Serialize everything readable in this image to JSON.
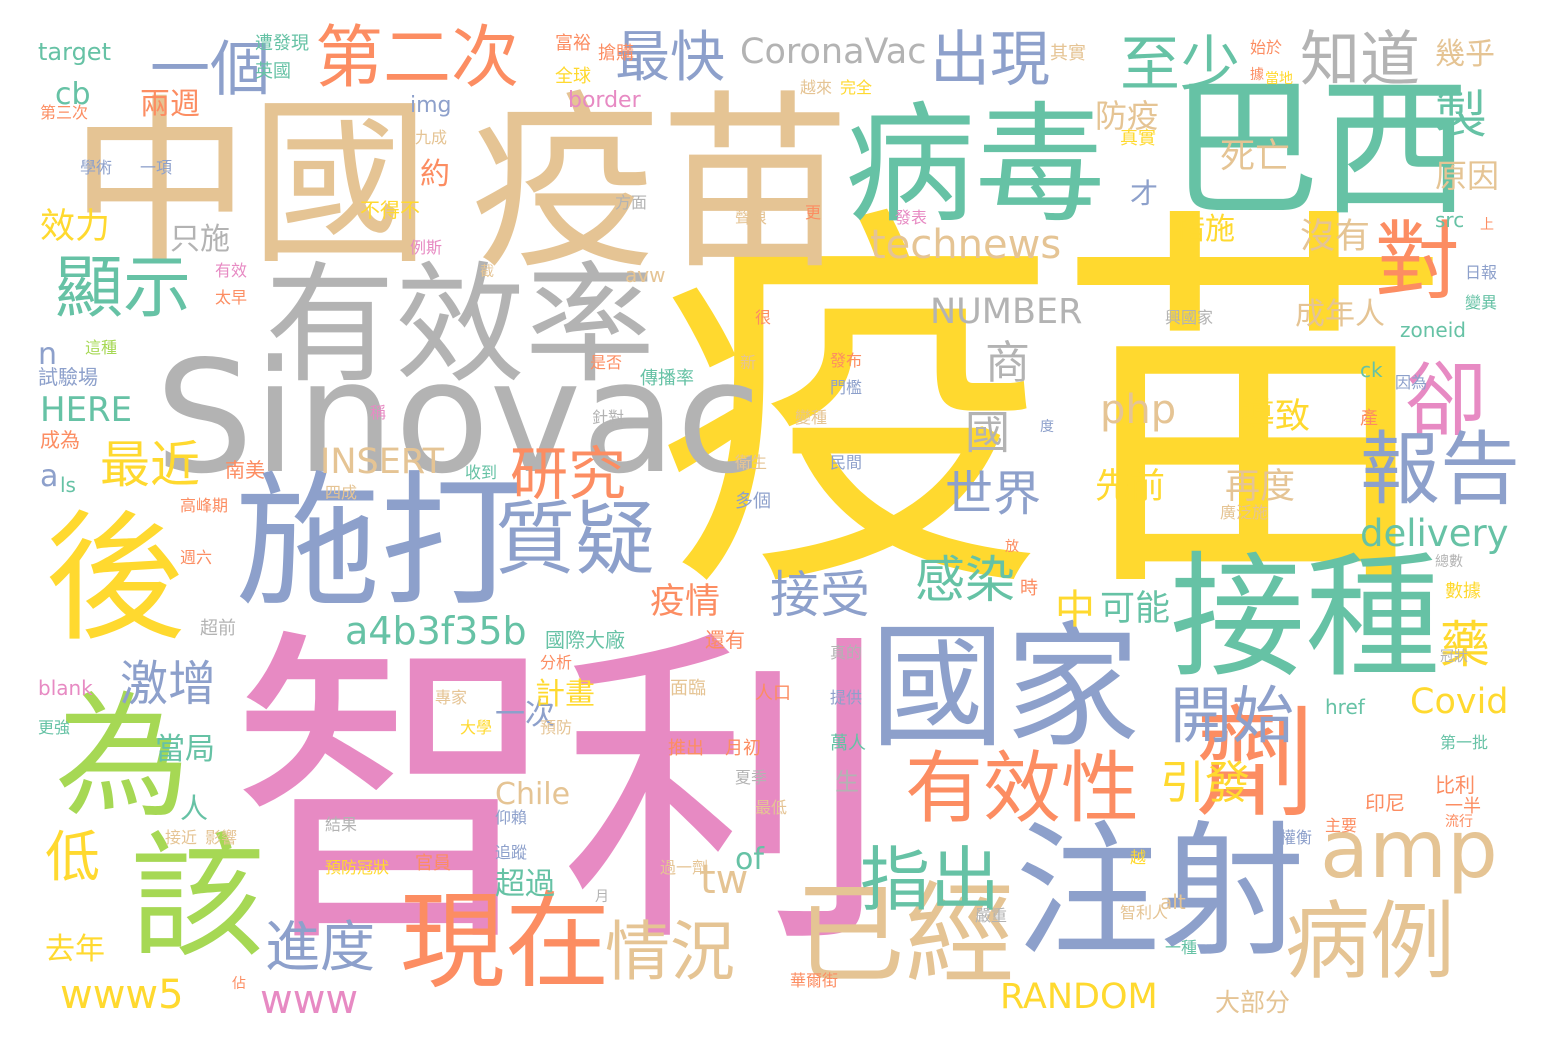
{
  "palette": {
    "pink": "#E78AC3",
    "yellow": "#FFD92F",
    "tan": "#E5C494",
    "teal": "#66C2A5",
    "blue": "#8DA0CB",
    "orange": "#FC8D62",
    "green": "#A6D854",
    "gray": "#B3B3B3"
  },
  "words": [
    {
      "text": "疫苗",
      "color": "yellow"
    },
    {
      "text": "智利",
      "color": "pink"
    },
    {
      "text": "疫苗",
      "color": "tan"
    },
    {
      "text": "中國",
      "color": "tan"
    },
    {
      "text": "病毒",
      "color": "teal"
    },
    {
      "text": "巴西",
      "color": "teal"
    },
    {
      "text": "Sinovac",
      "color": "gray"
    },
    {
      "text": "有效率",
      "color": "gray"
    },
    {
      "text": "施打",
      "color": "blue"
    },
    {
      "text": "國家",
      "color": "blue"
    },
    {
      "text": "接種",
      "color": "teal"
    },
    {
      "text": "注射",
      "color": "blue"
    },
    {
      "text": "後",
      "color": "yellow"
    },
    {
      "text": "為",
      "color": "green"
    },
    {
      "text": "該",
      "color": "green"
    },
    {
      "text": "劑",
      "color": "orange"
    },
    {
      "text": "已經",
      "color": "tan"
    },
    {
      "text": "現在",
      "color": "orange"
    },
    {
      "text": "質疑",
      "color": "blue"
    },
    {
      "text": "有效性",
      "color": "orange"
    },
    {
      "text": "病例",
      "color": "tan"
    },
    {
      "text": "amp",
      "color": "tan"
    },
    {
      "text": "對",
      "color": "orange"
    },
    {
      "text": "卻",
      "color": "pink"
    },
    {
      "text": "報告",
      "color": "blue"
    },
    {
      "text": "顯示",
      "color": "teal"
    },
    {
      "text": "第二次",
      "color": "orange"
    },
    {
      "text": "情況",
      "color": "tan"
    },
    {
      "text": "指出",
      "color": "teal"
    },
    {
      "text": "開始",
      "color": "blue"
    },
    {
      "text": "一個",
      "color": "blue"
    },
    {
      "text": "最快",
      "color": "blue"
    },
    {
      "text": "出現",
      "color": "blue"
    },
    {
      "text": "至少",
      "color": "teal"
    },
    {
      "text": "知道",
      "color": "gray"
    },
    {
      "text": "technews",
      "color": "tan"
    },
    {
      "text": "研究",
      "color": "orange"
    },
    {
      "text": "感染",
      "color": "teal"
    },
    {
      "text": "世界",
      "color": "blue"
    },
    {
      "text": "接受",
      "color": "blue"
    },
    {
      "text": "進度",
      "color": "blue"
    },
    {
      "text": "低",
      "color": "yellow"
    },
    {
      "text": "最近",
      "color": "yellow"
    },
    {
      "text": "激增",
      "color": "blue"
    },
    {
      "text": "製",
      "color": "teal"
    },
    {
      "text": "商",
      "color": "gray"
    },
    {
      "text": "國",
      "color": "gray"
    },
    {
      "text": "CoronaVac",
      "color": "gray"
    },
    {
      "text": "NUMBER",
      "color": "gray"
    },
    {
      "text": "RANDOM",
      "color": "yellow"
    },
    {
      "text": "www5",
      "color": "yellow"
    },
    {
      "text": "www",
      "color": "pink"
    },
    {
      "text": "delivery",
      "color": "teal"
    },
    {
      "text": "a4b3f35b",
      "color": "teal"
    },
    {
      "text": "php",
      "color": "tan"
    },
    {
      "text": "INSERT",
      "color": "tan"
    },
    {
      "text": "HERE",
      "color": "teal"
    },
    {
      "text": "tw",
      "color": "tan"
    },
    {
      "text": "引發",
      "color": "yellow"
    },
    {
      "text": "中",
      "color": "yellow"
    },
    {
      "text": "可能",
      "color": "teal"
    },
    {
      "text": "疫情",
      "color": "orange"
    },
    {
      "text": "導致",
      "color": "yellow"
    },
    {
      "text": "先前",
      "color": "yellow"
    },
    {
      "text": "再度",
      "color": "tan"
    },
    {
      "text": "藥",
      "color": "yellow"
    },
    {
      "text": "Covid",
      "color": "yellow"
    },
    {
      "text": "Chile",
      "color": "tan"
    },
    {
      "text": "of",
      "color": "teal"
    },
    {
      "text": "去年",
      "color": "yellow"
    },
    {
      "text": "效力",
      "color": "yellow"
    },
    {
      "text": "防疫",
      "color": "tan"
    },
    {
      "text": "措施",
      "color": "yellow"
    },
    {
      "text": "沒有",
      "color": "tan"
    },
    {
      "text": "成年人",
      "color": "tan"
    },
    {
      "text": "原因",
      "color": "tan"
    },
    {
      "text": "幾乎",
      "color": "tan"
    },
    {
      "text": "死亡",
      "color": "tan"
    },
    {
      "text": "兩週",
      "color": "orange"
    },
    {
      "text": "超過",
      "color": "teal"
    },
    {
      "text": "一次",
      "color": "blue"
    },
    {
      "text": "計畫",
      "color": "yellow"
    },
    {
      "text": "當局",
      "color": "teal"
    },
    {
      "text": "人",
      "color": "teal"
    },
    {
      "text": "只施",
      "color": "gray"
    },
    {
      "text": "約",
      "color": "orange"
    },
    {
      "text": "才",
      "color": "blue"
    },
    {
      "text": "南美",
      "color": "orange"
    },
    {
      "text": "成為",
      "color": "orange"
    },
    {
      "text": "試驗場",
      "color": "blue"
    },
    {
      "text": "cb",
      "color": "teal"
    },
    {
      "text": "target",
      "color": "teal"
    },
    {
      "text": "img",
      "color": "blue"
    },
    {
      "text": "border",
      "color": "pink"
    },
    {
      "text": "avw",
      "color": "tan"
    },
    {
      "text": "zoneid",
      "color": "teal"
    },
    {
      "text": "ck",
      "color": "teal"
    },
    {
      "text": "src",
      "color": "teal"
    },
    {
      "text": "href",
      "color": "teal"
    },
    {
      "text": "alt",
      "color": "tan"
    },
    {
      "text": "blank",
      "color": "pink"
    },
    {
      "text": "ls",
      "color": "teal"
    },
    {
      "text": "n",
      "color": "blue"
    },
    {
      "text": "a",
      "color": "blue"
    },
    {
      "text": "大部分",
      "color": "tan"
    },
    {
      "text": "比利",
      "color": "orange"
    },
    {
      "text": "一半",
      "color": "orange"
    },
    {
      "text": "印尼",
      "color": "orange"
    },
    {
      "text": "數據",
      "color": "yellow"
    },
    {
      "text": "產",
      "color": "orange"
    },
    {
      "text": "生",
      "color": "gray"
    },
    {
      "text": "時",
      "color": "orange"
    },
    {
      "text": "還有",
      "color": "orange"
    },
    {
      "text": "國際大廠",
      "color": "teal"
    },
    {
      "text": "超前",
      "color": "gray"
    },
    {
      "text": "面臨",
      "color": "tan"
    },
    {
      "text": "推出",
      "color": "orange"
    },
    {
      "text": "月初",
      "color": "orange"
    },
    {
      "text": "人口",
      "color": "orange"
    },
    {
      "text": "萬人",
      "color": "teal"
    },
    {
      "text": "全球",
      "color": "yellow"
    },
    {
      "text": "英國",
      "color": "teal"
    },
    {
      "text": "富裕",
      "color": "orange"
    },
    {
      "text": "搶購",
      "color": "orange"
    },
    {
      "text": "遭發現",
      "color": "teal"
    },
    {
      "text": "其實",
      "color": "tan"
    },
    {
      "text": "越來",
      "color": "tan"
    },
    {
      "text": "完全",
      "color": "yellow"
    },
    {
      "text": "真實",
      "color": "yellow"
    },
    {
      "text": "不得不",
      "color": "yellow"
    },
    {
      "text": "九成",
      "color": "tan"
    },
    {
      "text": "一項",
      "color": "blue"
    },
    {
      "text": "學術",
      "color": "blue"
    },
    {
      "text": "第三次",
      "color": "orange"
    },
    {
      "text": "方面",
      "color": "gray"
    },
    {
      "text": "發表",
      "color": "pink"
    },
    {
      "text": "聲浪",
      "color": "tan"
    },
    {
      "text": "例斯",
      "color": "pink"
    },
    {
      "text": "有效",
      "color": "pink"
    },
    {
      "text": "太早",
      "color": "orange"
    },
    {
      "text": "這種",
      "color": "green"
    },
    {
      "text": "是否",
      "color": "orange"
    },
    {
      "text": "傳播率",
      "color": "teal"
    },
    {
      "text": "針對",
      "color": "gray"
    },
    {
      "text": "衛生",
      "color": "tan"
    },
    {
      "text": "民間",
      "color": "blue"
    },
    {
      "text": "多個",
      "color": "blue"
    },
    {
      "text": "收到",
      "color": "teal"
    },
    {
      "text": "四成",
      "color": "tan"
    },
    {
      "text": "高峰期",
      "color": "orange"
    },
    {
      "text": "週六",
      "color": "orange"
    },
    {
      "text": "發布",
      "color": "orange"
    },
    {
      "text": "門檻",
      "color": "blue"
    },
    {
      "text": "變種",
      "color": "tan"
    },
    {
      "text": "分析",
      "color": "orange"
    },
    {
      "text": "專家",
      "color": "tan"
    },
    {
      "text": "大學",
      "color": "yellow"
    },
    {
      "text": "預防",
      "color": "tan"
    },
    {
      "text": "提供",
      "color": "blue"
    },
    {
      "text": "夏季",
      "color": "gray"
    },
    {
      "text": "最低",
      "color": "tan"
    },
    {
      "text": "接近",
      "color": "tan"
    },
    {
      "text": "影響",
      "color": "tan"
    },
    {
      "text": "結果",
      "color": "gray"
    },
    {
      "text": "預防冠狀",
      "color": "yellow"
    },
    {
      "text": "官員",
      "color": "orange"
    },
    {
      "text": "仰賴",
      "color": "blue"
    },
    {
      "text": "追蹤",
      "color": "blue"
    },
    {
      "text": "過一劑",
      "color": "tan"
    },
    {
      "text": "月",
      "color": "gray"
    },
    {
      "text": "佔",
      "color": "orange"
    },
    {
      "text": "華爾街",
      "color": "orange"
    },
    {
      "text": "嚴重",
      "color": "gray"
    },
    {
      "text": "一種",
      "color": "teal"
    },
    {
      "text": "智利人",
      "color": "tan"
    },
    {
      "text": "主要",
      "color": "orange"
    },
    {
      "text": "權衡",
      "color": "blue"
    },
    {
      "text": "流行",
      "color": "orange"
    },
    {
      "text": "第一批",
      "color": "teal"
    },
    {
      "text": "冠狀",
      "color": "gray"
    },
    {
      "text": "總數",
      "color": "gray"
    },
    {
      "text": "廣泛施",
      "color": "tan"
    },
    {
      "text": "更強",
      "color": "teal"
    },
    {
      "text": "真的",
      "color": "gray"
    },
    {
      "text": "越",
      "color": "yellow"
    },
    {
      "text": "日報",
      "color": "blue"
    },
    {
      "text": "變異",
      "color": "teal"
    },
    {
      "text": "因為",
      "color": "blue"
    },
    {
      "text": "上",
      "color": "orange"
    },
    {
      "text": "很",
      "color": "orange"
    },
    {
      "text": "新",
      "color": "tan"
    },
    {
      "text": "更",
      "color": "orange"
    },
    {
      "text": "度",
      "color": "blue"
    },
    {
      "text": "稱",
      "color": "pink"
    },
    {
      "text": "放",
      "color": "orange"
    },
    {
      "text": "截",
      "color": "tan"
    },
    {
      "text": "興國家",
      "color": "gray"
    },
    {
      "text": "始於",
      "color": "orange"
    },
    {
      "text": "當地",
      "color": "yellow"
    },
    {
      "text": "據",
      "color": "orange"
    }
  ]
}
